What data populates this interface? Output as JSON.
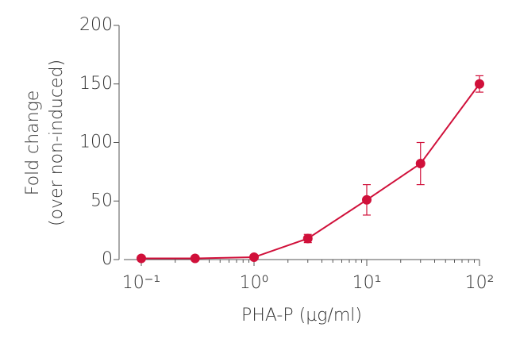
{
  "chart_data": {
    "type": "line",
    "xlabel": "PHA-P (µg/ml)",
    "ylabel": [
      "Fold change",
      "(over non-induced)"
    ],
    "x": [
      0.1,
      0.3,
      1,
      3,
      10,
      30,
      100
    ],
    "series": [
      {
        "color": "#d0103a",
        "values": [
          1,
          1,
          2,
          18,
          51,
          82,
          150
        ],
        "errors": [
          0,
          0,
          0,
          3.5,
          13,
          18,
          7
        ]
      }
    ],
    "xscale": "log",
    "xlim": [
      0.07,
      100
    ],
    "xticks": [
      {
        "value": 0.1,
        "label": "10⁻¹"
      },
      {
        "value": 1,
        "label": "10⁰"
      },
      {
        "value": 10,
        "label": "10¹"
      },
      {
        "value": 100,
        "label": "10²"
      }
    ],
    "xminorticks": [
      0.2,
      0.3,
      0.4,
      0.5,
      0.6,
      0.7,
      0.8,
      0.9,
      2,
      3,
      4,
      5,
      6,
      7,
      8,
      9,
      20,
      30,
      40,
      50,
      60,
      70,
      80,
      90
    ],
    "ylim": [
      0,
      200
    ],
    "yticks": [
      0,
      50,
      100,
      150,
      200
    ]
  }
}
